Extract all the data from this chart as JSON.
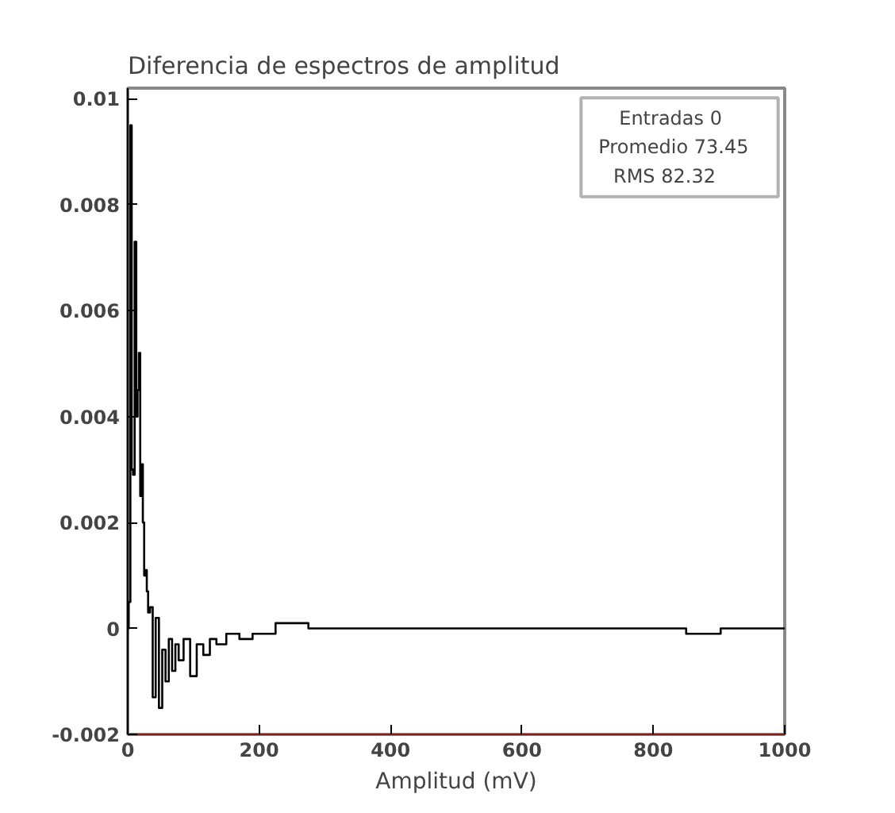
{
  "chart_data": {
    "type": "step",
    "title": "Diferencia de espectros de amplitud",
    "xlabel": "Amplitud (mV)",
    "x": [
      0,
      3,
      5,
      7,
      9,
      12,
      14,
      16,
      18,
      20,
      22,
      24,
      26,
      28,
      30,
      32,
      36,
      40,
      45,
      50,
      55,
      60,
      65,
      70,
      75,
      80,
      90,
      100,
      110,
      120,
      130,
      140,
      160,
      180,
      200,
      250,
      300,
      350,
      400,
      500,
      600,
      700,
      800,
      900,
      905,
      1000
    ],
    "values": [
      0,
      0.0005,
      0.0095,
      0.003,
      0.0029,
      0.0073,
      0.004,
      0.0045,
      0.0052,
      0.0025,
      0.0031,
      0.002,
      0.001,
      0.0011,
      0.0007,
      0.0003,
      0.0004,
      -0.0013,
      0.0002,
      -0.0015,
      -0.0004,
      -0.001,
      -0.0002,
      -0.0008,
      -0.0003,
      -0.0006,
      -0.0002,
      -0.0009,
      -0.0003,
      -0.0005,
      -0.0002,
      -0.0003,
      -0.0001,
      -0.0002,
      -0.0001,
      0.0001,
      0,
      0,
      0,
      0,
      0,
      0,
      0,
      -0.0001,
      0,
      0
    ],
    "color": "#000000",
    "xlim": [
      0,
      1000
    ],
    "xticks": [
      0,
      200,
      400,
      600,
      800,
      1000
    ],
    "ylim": [
      -0.002,
      0.0102
    ],
    "yticks": [
      {
        "value": -0.002,
        "label": "-0.002"
      },
      0,
      0.002,
      0.004,
      0.006,
      0.008,
      0.01
    ],
    "grid": false,
    "annotations": [
      "Entradas    0",
      "Promedio   73.45",
      "RMS      82.32"
    ]
  }
}
